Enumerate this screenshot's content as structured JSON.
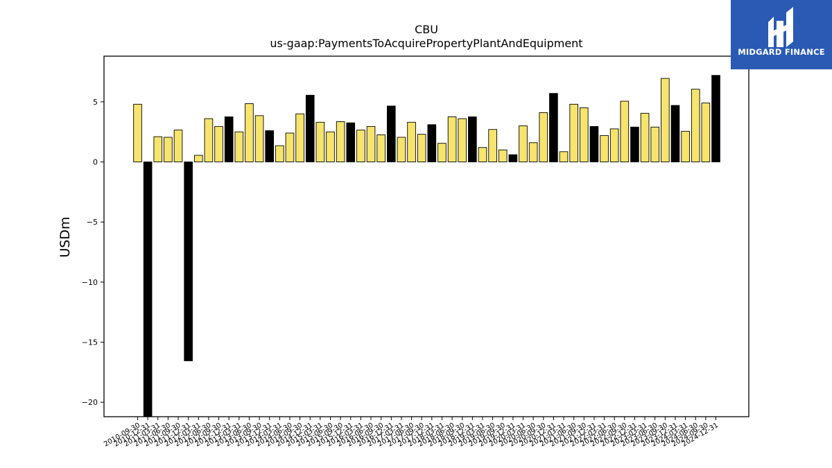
{
  "logo": {
    "text": "MIDGARD FINANCE"
  },
  "colors": {
    "up": "#f6e46c",
    "down": "#000000",
    "edge": "#000000"
  },
  "chart_data": {
    "type": "bar",
    "title": "CBU",
    "subtitle": "us-gaap:PaymentsToAcquirePropertyPlantAndEquipment",
    "ylabel": "USDm",
    "xlabel": "",
    "ylim": [
      -21.2,
      8.8
    ],
    "yticks": [
      5,
      0,
      -5,
      -10,
      -15,
      -20
    ],
    "ytick_labels": [
      "5",
      "0",
      "−5",
      "−10",
      "−15",
      "−20"
    ],
    "grid": false,
    "legend": "none",
    "categories": [
      "2010-09-30",
      "2010-12-31",
      "2011-03-31",
      "2011-06-30",
      "2011-09-30",
      "2011-12-31",
      "2012-03-31",
      "2012-06-30",
      "2012-09-30",
      "2012-12-31",
      "2013-03-31",
      "2013-06-30",
      "2013-09-30",
      "2013-12-31",
      "2014-03-31",
      "2014-06-30",
      "2014-09-30",
      "2014-12-31",
      "2015-03-31",
      "2015-06-30",
      "2015-09-30",
      "2015-12-31",
      "2016-03-31",
      "2016-06-30",
      "2016-09-30",
      "2016-12-31",
      "2017-03-31",
      "2017-06-30",
      "2017-09-30",
      "2017-12-31",
      "2018-03-31",
      "2018-06-30",
      "2018-09-30",
      "2018-12-31",
      "2019-03-31",
      "2019-06-30",
      "2019-09-30",
      "2019-12-31",
      "2020-03-31",
      "2020-06-30",
      "2020-09-30",
      "2020-12-31",
      "2021-03-31",
      "2021-06-30",
      "2021-09-30",
      "2021-12-31",
      "2022-03-31",
      "2022-06-30",
      "2022-09-30",
      "2022-12-31",
      "2023-03-31",
      "2023-06-30",
      "2023-09-30",
      "2023-12-31",
      "2024-03-31",
      "2024-06-30",
      "2024-09-30",
      "2024-12-31"
    ],
    "values": [
      4.8,
      -21.2,
      2.1,
      2.05,
      2.65,
      -16.55,
      0.55,
      3.6,
      2.95,
      3.75,
      2.5,
      4.85,
      3.85,
      2.6,
      1.35,
      2.4,
      4.0,
      5.55,
      3.3,
      2.5,
      3.35,
      3.25,
      2.65,
      2.95,
      2.25,
      4.65,
      2.05,
      3.3,
      2.3,
      3.1,
      1.55,
      3.75,
      3.6,
      3.75,
      1.2,
      2.7,
      1.0,
      0.6,
      3.0,
      1.6,
      4.1,
      5.7,
      0.85,
      4.8,
      4.5,
      2.95,
      2.2,
      2.75,
      5.05,
      2.9,
      4.05,
      2.9,
      6.95,
      4.7,
      2.55,
      6.05,
      4.9,
      7.2
    ],
    "highlight_quarter": "Q4"
  }
}
